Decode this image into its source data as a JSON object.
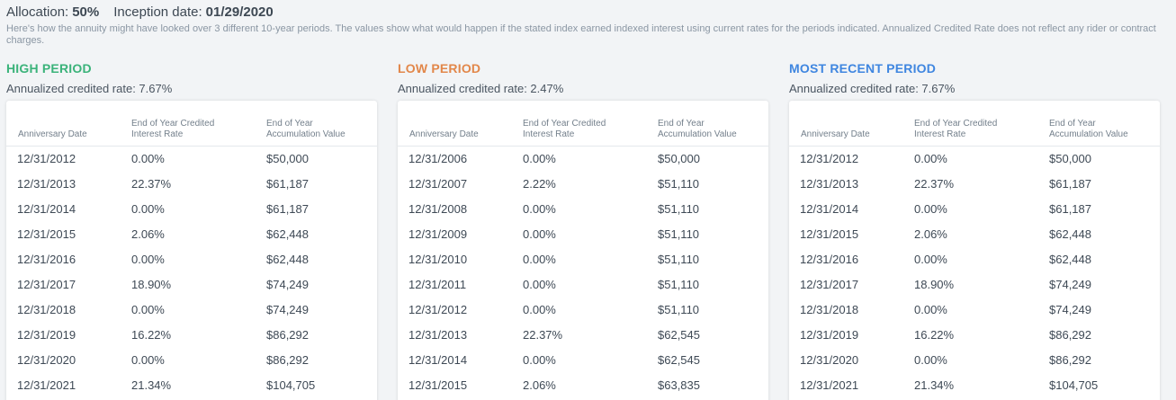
{
  "header": {
    "allocation_label": "Allocation:",
    "allocation_value": "50%",
    "inception_label": "Inception date:",
    "inception_value": "01/29/2020",
    "description": "Here's how the annuity might have looked over 3 different 10-year periods. The values show what would happen if the stated index earned indexed interest using current rates for the periods indicated. Annualized Credited Rate does not reflect any rider or contract charges."
  },
  "columns": {
    "col1": "Anniversary Date",
    "col2": "End of Year Credited Interest Rate",
    "col3": "End of Year Accumulation Value"
  },
  "panels": [
    {
      "title": "HIGH PERIOD",
      "color": "#3bb37a",
      "rate_text": "Annualized credited rate: 7.67%",
      "rows": [
        [
          "12/31/2012",
          "0.00%",
          "$50,000"
        ],
        [
          "12/31/2013",
          "22.37%",
          "$61,187"
        ],
        [
          "12/31/2014",
          "0.00%",
          "$61,187"
        ],
        [
          "12/31/2015",
          "2.06%",
          "$62,448"
        ],
        [
          "12/31/2016",
          "0.00%",
          "$62,448"
        ],
        [
          "12/31/2017",
          "18.90%",
          "$74,249"
        ],
        [
          "12/31/2018",
          "0.00%",
          "$74,249"
        ],
        [
          "12/31/2019",
          "16.22%",
          "$86,292"
        ],
        [
          "12/31/2020",
          "0.00%",
          "$86,292"
        ],
        [
          "12/31/2021",
          "21.34%",
          "$104,705"
        ]
      ]
    },
    {
      "title": "LOW PERIOD",
      "color": "#e2874a",
      "rate_text": "Annualized credited rate: 2.47%",
      "rows": [
        [
          "12/31/2006",
          "0.00%",
          "$50,000"
        ],
        [
          "12/31/2007",
          "2.22%",
          "$51,110"
        ],
        [
          "12/31/2008",
          "0.00%",
          "$51,110"
        ],
        [
          "12/31/2009",
          "0.00%",
          "$51,110"
        ],
        [
          "12/31/2010",
          "0.00%",
          "$51,110"
        ],
        [
          "12/31/2011",
          "0.00%",
          "$51,110"
        ],
        [
          "12/31/2012",
          "0.00%",
          "$51,110"
        ],
        [
          "12/31/2013",
          "22.37%",
          "$62,545"
        ],
        [
          "12/31/2014",
          "0.00%",
          "$62,545"
        ],
        [
          "12/31/2015",
          "2.06%",
          "$63,835"
        ]
      ]
    },
    {
      "title": "MOST RECENT PERIOD",
      "color": "#3f86e0",
      "rate_text": "Annualized credited rate: 7.67%",
      "rows": [
        [
          "12/31/2012",
          "0.00%",
          "$50,000"
        ],
        [
          "12/31/2013",
          "22.37%",
          "$61,187"
        ],
        [
          "12/31/2014",
          "0.00%",
          "$61,187"
        ],
        [
          "12/31/2015",
          "2.06%",
          "$62,448"
        ],
        [
          "12/31/2016",
          "0.00%",
          "$62,448"
        ],
        [
          "12/31/2017",
          "18.90%",
          "$74,249"
        ],
        [
          "12/31/2018",
          "0.00%",
          "$74,249"
        ],
        [
          "12/31/2019",
          "16.22%",
          "$86,292"
        ],
        [
          "12/31/2020",
          "0.00%",
          "$86,292"
        ],
        [
          "12/31/2021",
          "21.34%",
          "$104,705"
        ]
      ]
    }
  ]
}
